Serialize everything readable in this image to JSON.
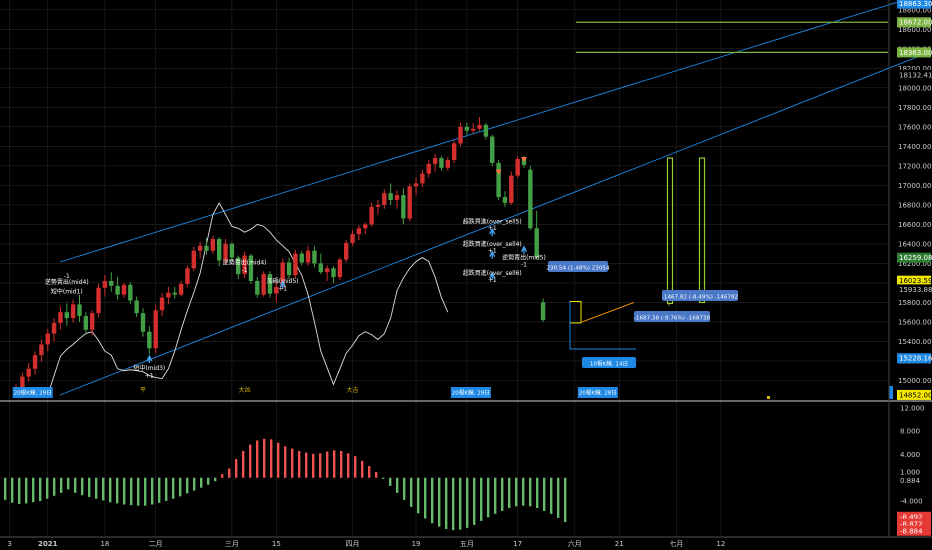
{
  "chart_data": [
    {
      "type": "candlestick",
      "title": "",
      "y_axis": {
        "side": "right",
        "range": [
          14800,
          18900
        ],
        "ticks": [
          "18800.00",
          "18600.00",
          "18400.00",
          "18200.00",
          "18000.00",
          "17800.00",
          "17600.00",
          "17400.00",
          "17200.00",
          "17000.00",
          "16800.00",
          "16600.00",
          "16400.00",
          "16200.00",
          "16000.00",
          "15800.00",
          "15600.00",
          "15400.00",
          "15200.00",
          "15000.00"
        ],
        "tick_values": [
          18800,
          18600,
          18400,
          18200,
          18000,
          17800,
          17600,
          17400,
          17200,
          17000,
          16800,
          16600,
          16400,
          16200,
          16000,
          15800,
          15600,
          15400,
          15200,
          15000
        ],
        "price_tags": [
          {
            "text": "18863.30",
            "value": 18863,
            "bg": "#1e88e5",
            "fg": "#ffffff"
          },
          {
            "text": "18672.00",
            "value": 18672,
            "bg": "#7cb342",
            "fg": "#ffffff"
          },
          {
            "text": "18363.00",
            "value": 18363,
            "bg": "#7cb342",
            "fg": "#ffffff"
          },
          {
            "text": "18132.41",
            "value": 18132,
            "bg": "#000000",
            "fg": "#cccccc"
          },
          {
            "text": "16259.08",
            "value": 16259,
            "bg": "#2e7d32",
            "fg": "#ffffff"
          },
          {
            "text": "16023.59",
            "value": 16023,
            "bg": "#f5e800",
            "fg": "#000000"
          },
          {
            "text": "15933.88",
            "value": 15934,
            "bg": "#000000",
            "fg": "#cccccc"
          },
          {
            "text": "15228.16",
            "value": 15228,
            "bg": "#1e88e5",
            "fg": "#ffffff"
          },
          {
            "text": "14852.00",
            "value": 14852,
            "bg": "#f5e800",
            "fg": "#000000"
          }
        ]
      },
      "candles": [
        {
          "o": 14870,
          "h": 14960,
          "l": 14820,
          "c": 14930
        },
        {
          "o": 14930,
          "h": 15080,
          "l": 14890,
          "c": 15040
        },
        {
          "o": 15040,
          "h": 15180,
          "l": 14990,
          "c": 15120
        },
        {
          "o": 15120,
          "h": 15300,
          "l": 15060,
          "c": 15260
        },
        {
          "o": 15260,
          "h": 15420,
          "l": 15190,
          "c": 15370
        },
        {
          "o": 15370,
          "h": 15530,
          "l": 15300,
          "c": 15480
        },
        {
          "o": 15480,
          "h": 15640,
          "l": 15400,
          "c": 15590
        },
        {
          "o": 15590,
          "h": 15760,
          "l": 15520,
          "c": 15700
        },
        {
          "o": 15700,
          "h": 15790,
          "l": 15560,
          "c": 15640
        },
        {
          "o": 15640,
          "h": 15830,
          "l": 15590,
          "c": 15780
        },
        {
          "o": 15780,
          "h": 15880,
          "l": 15600,
          "c": 15660
        },
        {
          "o": 15660,
          "h": 15700,
          "l": 15480,
          "c": 15520
        },
        {
          "o": 15520,
          "h": 15720,
          "l": 15460,
          "c": 15690
        },
        {
          "o": 15690,
          "h": 15990,
          "l": 15650,
          "c": 15950
        },
        {
          "o": 15950,
          "h": 16080,
          "l": 15860,
          "c": 16020
        },
        {
          "o": 16020,
          "h": 16110,
          "l": 15910,
          "c": 15970
        },
        {
          "o": 15970,
          "h": 16060,
          "l": 15830,
          "c": 15880
        },
        {
          "o": 15880,
          "h": 16000,
          "l": 15850,
          "c": 15980
        },
        {
          "o": 15980,
          "h": 16010,
          "l": 15780,
          "c": 15820
        },
        {
          "o": 15820,
          "h": 15860,
          "l": 15650,
          "c": 15690
        },
        {
          "o": 15690,
          "h": 15740,
          "l": 15450,
          "c": 15500
        },
        {
          "o": 15500,
          "h": 15560,
          "l": 15270,
          "c": 15330
        },
        {
          "o": 15330,
          "h": 15780,
          "l": 15280,
          "c": 15720
        },
        {
          "o": 15720,
          "h": 15900,
          "l": 15660,
          "c": 15850
        },
        {
          "o": 15850,
          "h": 15960,
          "l": 15780,
          "c": 15900
        },
        {
          "o": 15900,
          "h": 15960,
          "l": 15840,
          "c": 15880
        },
        {
          "o": 15880,
          "h": 16020,
          "l": 15860,
          "c": 15990
        },
        {
          "o": 15990,
          "h": 16180,
          "l": 15960,
          "c": 16150
        },
        {
          "o": 16150,
          "h": 16370,
          "l": 16120,
          "c": 16330
        },
        {
          "o": 16330,
          "h": 16420,
          "l": 16250,
          "c": 16380
        },
        {
          "o": 16380,
          "h": 16460,
          "l": 16290,
          "c": 16330
        },
        {
          "o": 16330,
          "h": 16480,
          "l": 16300,
          "c": 16450
        },
        {
          "o": 16450,
          "h": 16470,
          "l": 16170,
          "c": 16230
        },
        {
          "o": 16230,
          "h": 16450,
          "l": 16190,
          "c": 16400
        },
        {
          "o": 16400,
          "h": 16420,
          "l": 16220,
          "c": 16260
        },
        {
          "o": 16260,
          "h": 16280,
          "l": 16040,
          "c": 16090
        },
        {
          "o": 16090,
          "h": 16320,
          "l": 16050,
          "c": 16280
        },
        {
          "o": 16280,
          "h": 16300,
          "l": 15990,
          "c": 16020
        },
        {
          "o": 16020,
          "h": 16060,
          "l": 15850,
          "c": 15880
        },
        {
          "o": 15880,
          "h": 16120,
          "l": 15860,
          "c": 16090
        },
        {
          "o": 16090,
          "h": 16120,
          "l": 15850,
          "c": 15890
        },
        {
          "o": 15890,
          "h": 16010,
          "l": 15800,
          "c": 15960
        },
        {
          "o": 15960,
          "h": 16250,
          "l": 15930,
          "c": 16210
        },
        {
          "o": 16210,
          "h": 16260,
          "l": 16040,
          "c": 16080
        },
        {
          "o": 16080,
          "h": 16340,
          "l": 16050,
          "c": 16300
        },
        {
          "o": 16300,
          "h": 16330,
          "l": 16180,
          "c": 16210
        },
        {
          "o": 16210,
          "h": 16380,
          "l": 16180,
          "c": 16330
        },
        {
          "o": 16330,
          "h": 16380,
          "l": 16160,
          "c": 16200
        },
        {
          "o": 16200,
          "h": 16300,
          "l": 16090,
          "c": 16110
        },
        {
          "o": 16110,
          "h": 16180,
          "l": 16020,
          "c": 16150
        },
        {
          "o": 16150,
          "h": 16170,
          "l": 16000,
          "c": 16060
        },
        {
          "o": 16060,
          "h": 16260,
          "l": 16030,
          "c": 16240
        },
        {
          "o": 16240,
          "h": 16440,
          "l": 16210,
          "c": 16410
        },
        {
          "o": 16410,
          "h": 16540,
          "l": 16380,
          "c": 16500
        },
        {
          "o": 16500,
          "h": 16590,
          "l": 16440,
          "c": 16560
        },
        {
          "o": 16560,
          "h": 16620,
          "l": 16500,
          "c": 16600
        },
        {
          "o": 16600,
          "h": 16820,
          "l": 16580,
          "c": 16780
        },
        {
          "o": 16780,
          "h": 16850,
          "l": 16700,
          "c": 16800
        },
        {
          "o": 16800,
          "h": 16960,
          "l": 16760,
          "c": 16920
        },
        {
          "o": 16920,
          "h": 17020,
          "l": 16800,
          "c": 16850
        },
        {
          "o": 16850,
          "h": 16950,
          "l": 16760,
          "c": 16900
        },
        {
          "o": 16900,
          "h": 16970,
          "l": 16600,
          "c": 16660
        },
        {
          "o": 16660,
          "h": 17020,
          "l": 16630,
          "c": 16990
        },
        {
          "o": 16990,
          "h": 17080,
          "l": 16900,
          "c": 17020
        },
        {
          "o": 17020,
          "h": 17160,
          "l": 16980,
          "c": 17120
        },
        {
          "o": 17120,
          "h": 17260,
          "l": 17080,
          "c": 17220
        },
        {
          "o": 17220,
          "h": 17320,
          "l": 17140,
          "c": 17280
        },
        {
          "o": 17280,
          "h": 17300,
          "l": 17150,
          "c": 17180
        },
        {
          "o": 17180,
          "h": 17290,
          "l": 17150,
          "c": 17260
        },
        {
          "o": 17260,
          "h": 17460,
          "l": 17230,
          "c": 17430
        },
        {
          "o": 17430,
          "h": 17640,
          "l": 17400,
          "c": 17600
        },
        {
          "o": 17600,
          "h": 17640,
          "l": 17520,
          "c": 17560
        },
        {
          "o": 17560,
          "h": 17640,
          "l": 17530,
          "c": 17580
        },
        {
          "o": 17580,
          "h": 17700,
          "l": 17560,
          "c": 17620
        },
        {
          "o": 17620,
          "h": 17640,
          "l": 17470,
          "c": 17500
        },
        {
          "o": 17500,
          "h": 17520,
          "l": 17200,
          "c": 17230
        },
        {
          "o": 17230,
          "h": 17260,
          "l": 16850,
          "c": 16880
        },
        {
          "o": 16880,
          "h": 16940,
          "l": 16780,
          "c": 16820
        },
        {
          "o": 16820,
          "h": 17140,
          "l": 16800,
          "c": 17100
        },
        {
          "o": 17100,
          "h": 17300,
          "l": 17080,
          "c": 17270
        },
        {
          "o": 17270,
          "h": 17300,
          "l": 17180,
          "c": 17210
        },
        {
          "o": 17160,
          "h": 17200,
          "l": 16540,
          "c": 16560
        },
        {
          "o": 16560,
          "h": 16740,
          "l": 16240,
          "c": 16260
        },
        {
          "o": 15800,
          "h": 15840,
          "l": 15600,
          "c": 15620
        }
      ],
      "annotations": [
        {
          "text": "-1",
          "price": 16050,
          "idx": 8,
          "color": "#ffffff"
        },
        {
          "text": "逆勢賣出(mid4)",
          "price": 15990,
          "idx": 8,
          "color": "#ffffff"
        },
        {
          "text": "短中(mid1)",
          "price": 15890,
          "idx": 8,
          "color": "#ffffff"
        },
        {
          "text": "逆勢賣出(mid4)",
          "price": 16190,
          "idx": 36,
          "color": "#ffffff"
        },
        {
          "text": "-1",
          "price": 16110,
          "idx": 36,
          "color": "#ffffff"
        },
        {
          "text": "加碼(mid5)",
          "price": 16000,
          "idx": 42,
          "color": "#ffffff"
        },
        {
          "text": "+1",
          "price": 15920,
          "idx": 42,
          "color": "#ffffff"
        },
        {
          "text": "短中(mid3)",
          "price": 15110,
          "idx": 21,
          "color": "#ffffff"
        },
        {
          "text": "+1",
          "price": 15030,
          "idx": 21,
          "color": "#ffffff"
        },
        {
          "text": "超跌買進(over_sell5)",
          "price": 16610,
          "idx": 75,
          "color": "#ffffff"
        },
        {
          "text": "+1",
          "price": 16540,
          "idx": 75,
          "color": "#ffffff"
        },
        {
          "text": "超跌買進(over_sell4)",
          "price": 16380,
          "idx": 75,
          "color": "#ffffff"
        },
        {
          "text": "+1",
          "price": 16310,
          "idx": 75,
          "color": "#ffffff"
        },
        {
          "text": "超跌買進(over_sell6)",
          "price": 16080,
          "idx": 75,
          "color": "#ffffff"
        },
        {
          "text": "+1",
          "price": 16010,
          "idx": 75,
          "color": "#ffffff"
        },
        {
          "text": "逆勢賣出(mid5)",
          "price": 16240,
          "idx": 80,
          "color": "#ffffff"
        },
        {
          "text": "-1",
          "price": 16170,
          "idx": 80,
          "color": "#ffffff"
        },
        {
          "text": "平",
          "price": 14880,
          "idx": 20,
          "color": "#d4b000"
        },
        {
          "text": "大凶",
          "price": 14880,
          "idx": 36,
          "color": "#d4b000"
        },
        {
          "text": "大吉",
          "price": 14880,
          "idx": 53,
          "color": "#d4b000"
        }
      ],
      "boxes": [
        {
          "text": "230.54 (1.48%) 23054",
          "bg": "#4a78c8"
        },
        {
          "text": "-1687.38 (-9.76%) -168738",
          "bg": "#4a78c8"
        },
        {
          "text": "-1467.82 (-8.49%) -146782",
          "bg": "#4a78c8"
        },
        {
          "text": "10根K線, 14日",
          "bg": "#1e88e5"
        }
      ],
      "time_markers": [
        {
          "text": "20根K線, 29日",
          "idx": 2
        },
        {
          "text": "20根K線, 29日",
          "idx": 71
        },
        {
          "text": "20根K線, 28日",
          "idx": 91
        }
      ],
      "osc_line": [
        14850,
        15050,
        15250,
        15320,
        15370,
        15430,
        15480,
        15500,
        15410,
        15300,
        15260,
        15120,
        15100,
        15110,
        15100,
        15090,
        15050,
        15030,
        15020,
        15120,
        15300,
        15520,
        15720,
        15900,
        16100,
        16400,
        16700,
        16820,
        16700,
        16580,
        16560,
        16520,
        16550,
        16600,
        16580,
        16520,
        16440,
        16380,
        16320,
        16200,
        16080,
        15880,
        15600,
        15300,
        15130,
        14960,
        15120,
        15280,
        15360,
        15460,
        15500,
        15470,
        15420,
        15480,
        15640,
        15920,
        16050,
        16150,
        16220,
        16260,
        16220,
        16060,
        15850,
        15700
      ],
      "osc_start_idx": 5,
      "colors": {
        "up": "#d32f2f",
        "down": "#43a047",
        "channel": "#1e88e5",
        "hline": "#7cb342",
        "osc": "#e0e0e0",
        "grid": "#262626"
      }
    },
    {
      "type": "bar",
      "title": "",
      "y_axis": {
        "side": "right",
        "range": [
          -10.0,
          13.0
        ],
        "ticks": [
          "12.000",
          "8.000",
          "4.000",
          "-4.000"
        ],
        "tick_values": [
          12,
          8,
          4,
          -4
        ],
        "price_tags": [
          {
            "text": "1.000",
            "value": 1.0,
            "bg": "#000000",
            "fg": "#cccccc"
          },
          {
            "text": "0.884",
            "value": -0.5,
            "bg": "#000000",
            "fg": "#cccccc"
          },
          {
            "text": "-8.492",
            "value": -6.7,
            "bg": "#e53935",
            "fg": "#ffffff"
          },
          {
            "text": "-8.872",
            "value": -7.9,
            "bg": "#e53935",
            "fg": "#ffffff"
          },
          {
            "text": "-8.884",
            "value": -9.1,
            "bg": "#e53935",
            "fg": "#ffffff"
          }
        ]
      },
      "values": [
        -3.8,
        -4.3,
        -4.5,
        -4.4,
        -4.2,
        -4.0,
        -3.6,
        -3.1,
        -2.6,
        -2.0,
        -2.6,
        -3.0,
        -3.3,
        -3.6,
        -3.9,
        -4.2,
        -4.4,
        -4.6,
        -4.7,
        -4.8,
        -4.8,
        -4.6,
        -4.3,
        -4.0,
        -3.6,
        -3.2,
        -2.7,
        -2.2,
        -1.7,
        -1.2,
        -0.6,
        0.6,
        1.6,
        3.2,
        4.6,
        5.7,
        6.4,
        6.7,
        6.6,
        6.0,
        5.4,
        5.0,
        4.6,
        4.3,
        4.1,
        4.2,
        4.5,
        4.7,
        4.6,
        4.2,
        3.7,
        2.9,
        2.0,
        1.0,
        -0.2,
        -1.4,
        -2.6,
        -3.8,
        -5.0,
        -6.1,
        -7.0,
        -7.8,
        -8.4,
        -8.8,
        -9.0,
        -8.9,
        -8.6,
        -8.1,
        -7.4,
        -6.8,
        -6.2,
        -5.7,
        -5.2,
        -4.9,
        -4.8,
        -4.9,
        -5.2,
        -5.7,
        -6.2,
        -6.9,
        -7.6
      ],
      "colors": {
        "up": "#66bb6a",
        "down": "#ef5350"
      }
    }
  ],
  "x_axis": {
    "labels": [
      {
        "text": "3",
        "idx": -1
      },
      {
        "text": "2021",
        "idx": 5
      },
      {
        "text": "18",
        "idx": 14
      },
      {
        "text": "二月",
        "idx": 22
      },
      {
        "text": "三月",
        "idx": 34
      },
      {
        "text": "15",
        "idx": 41
      },
      {
        "text": "四月",
        "idx": 53
      },
      {
        "text": "19",
        "idx": 63
      },
      {
        "text": "五月",
        "idx": 71
      },
      {
        "text": "17",
        "idx": 79
      },
      {
        "text": "六月",
        "idx": 88
      },
      {
        "text": "21",
        "idx": 95
      },
      {
        "text": "七月",
        "idx": 104
      },
      {
        "text": "12",
        "idx": 111
      }
    ]
  }
}
